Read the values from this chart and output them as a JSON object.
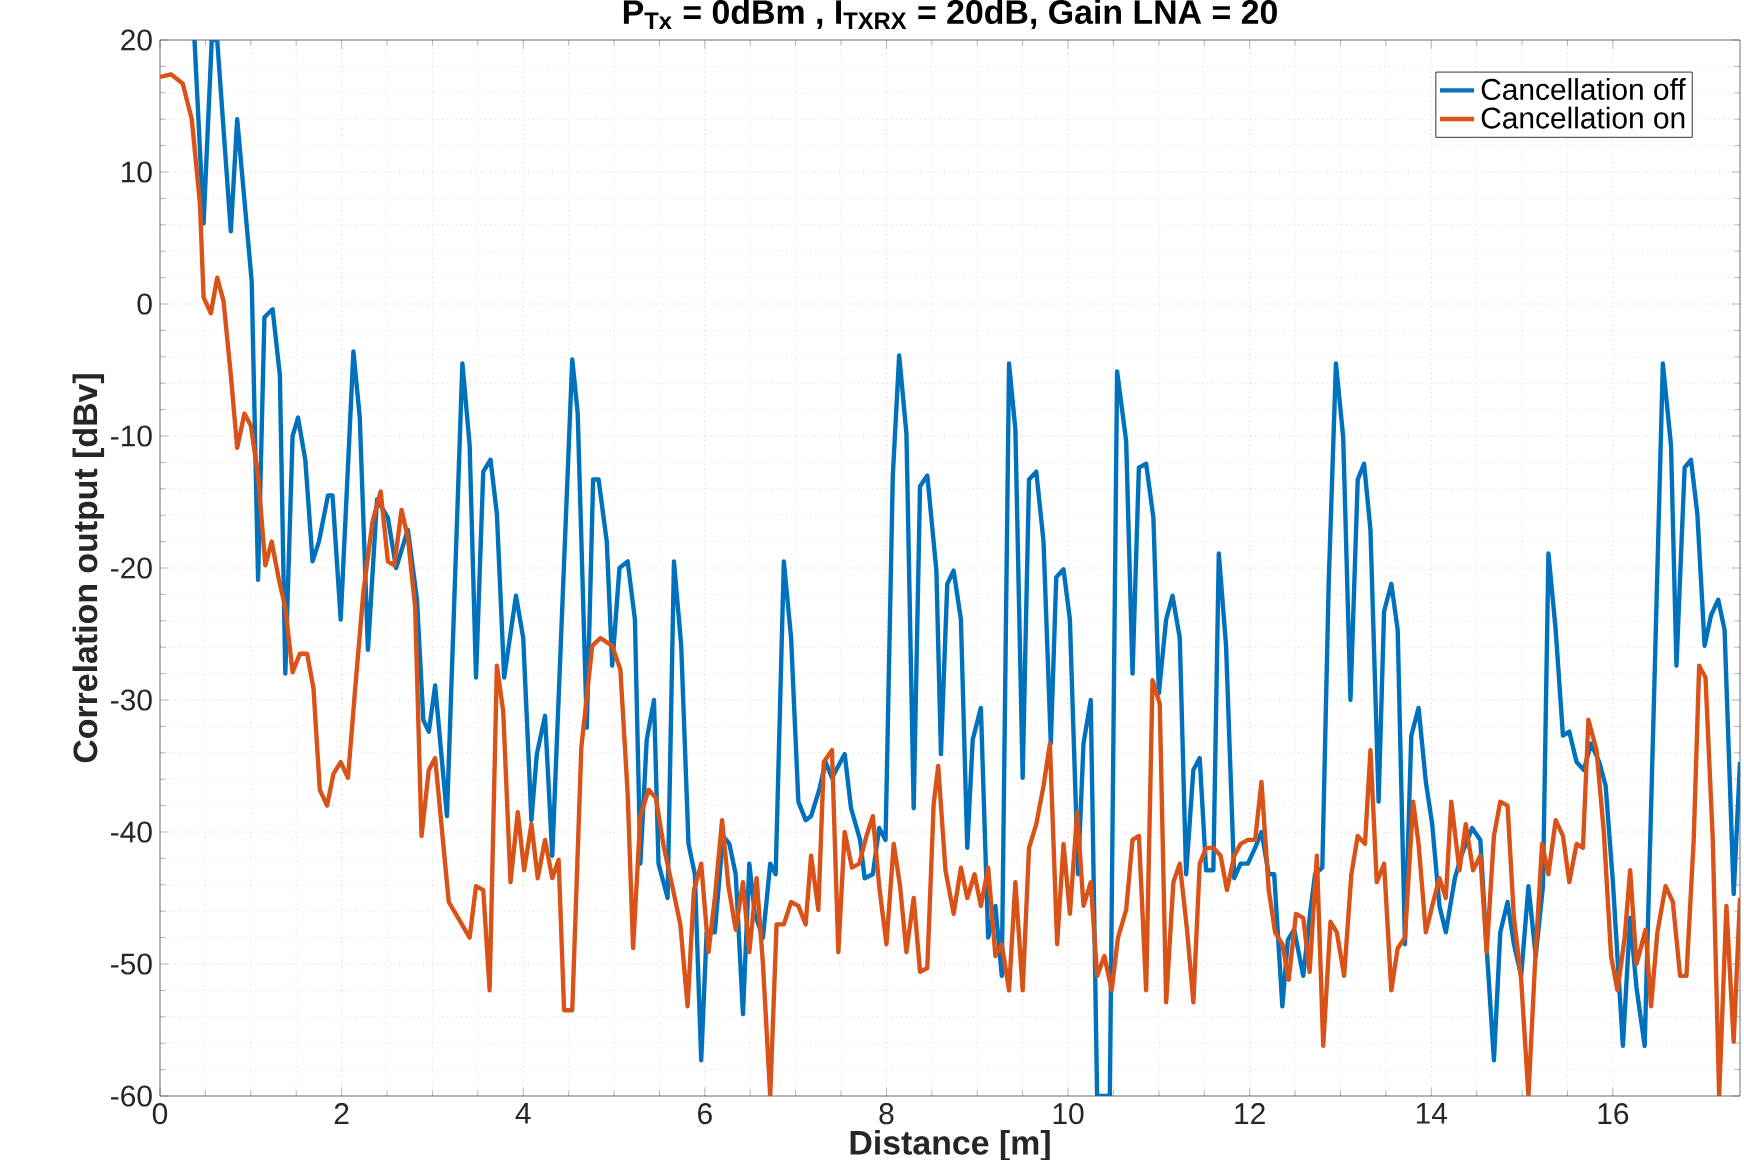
{
  "chart_data": {
    "type": "line",
    "title": "P$_{Tx}$ = 0dBm , I$_{TXRX}$ = 20dB, Gain LNA = 20",
    "xlabel": "Distance [m]",
    "ylabel": "Correlation output [dBv]",
    "xlim": [
      0,
      17.4
    ],
    "ylim": [
      -60,
      20
    ],
    "xticks": [
      0,
      2,
      4,
      6,
      8,
      10,
      12,
      14,
      16
    ],
    "yticks": [
      -60,
      -50,
      -40,
      -30,
      -20,
      -10,
      0,
      10,
      20
    ],
    "grid": true,
    "legend": "top right",
    "series": [
      {
        "name": "Cancellation off",
        "color": "#0072bd",
        "x": [
          0.38,
          0.48,
          0.57,
          0.63,
          0.78,
          0.85,
          1.01,
          1.08,
          1.15,
          1.24,
          1.32,
          1.38,
          1.46,
          1.52,
          1.6,
          1.68,
          1.75,
          1.85,
          1.9,
          1.99,
          2.13,
          2.2,
          2.29,
          2.39,
          2.51,
          2.6,
          2.73,
          2.83,
          2.9,
          2.96,
          3.03,
          3.16,
          3.33,
          3.41,
          3.48,
          3.56,
          3.64,
          3.71,
          3.79,
          3.92,
          4.0,
          4.09,
          4.15,
          4.24,
          4.32,
          4.54,
          4.6,
          4.7,
          4.77,
          4.83,
          4.92,
          4.98,
          5.06,
          5.15,
          5.23,
          5.29,
          5.36,
          5.44,
          5.49,
          5.59,
          5.66,
          5.74,
          5.82,
          5.89,
          5.96,
          6.02,
          6.11,
          6.2,
          6.27,
          6.34,
          6.42,
          6.49,
          6.55,
          6.64,
          6.72,
          6.78,
          6.87,
          6.95,
          7.03,
          7.11,
          7.17,
          7.26,
          7.33,
          7.4,
          7.54,
          7.61,
          7.71,
          7.76,
          7.85,
          7.92,
          7.99,
          8.07,
          8.14,
          8.22,
          8.3,
          8.37,
          8.45,
          8.55,
          8.6,
          8.67,
          8.74,
          8.82,
          8.89,
          8.95,
          9.04,
          9.12,
          9.2,
          9.27,
          9.35,
          9.42,
          9.5,
          9.57,
          9.65,
          9.73,
          9.81,
          9.87,
          9.95,
          10.02,
          10.11,
          10.17,
          10.25,
          10.32,
          10.46,
          10.54,
          10.64,
          10.71,
          10.78,
          10.86,
          10.94,
          11.0,
          11.08,
          11.15,
          11.23,
          11.3,
          11.38,
          11.45,
          11.52,
          11.6,
          11.66,
          11.74,
          11.83,
          11.9,
          11.98,
          12.06,
          12.13,
          12.21,
          12.27,
          12.36,
          12.42,
          12.49,
          12.59,
          12.67,
          12.72,
          12.8,
          12.87,
          12.95,
          13.03,
          13.11,
          13.19,
          13.26,
          13.33,
          13.42,
          13.48,
          13.56,
          13.63,
          13.71,
          13.78,
          13.86,
          13.94,
          14.01,
          14.09,
          14.16,
          14.26,
          14.33,
          14.45,
          14.54,
          14.61,
          14.69,
          14.76,
          14.84,
          14.91,
          14.99,
          15.07,
          15.15,
          15.23,
          15.29,
          15.37,
          15.45,
          15.52,
          15.6,
          15.68,
          15.76,
          15.85,
          15.92,
          16.0,
          16.11,
          16.19,
          16.26,
          16.35,
          16.45,
          16.55,
          16.64,
          16.7,
          16.79,
          16.86,
          16.93,
          17.01,
          17.08,
          17.16,
          17.23,
          17.33,
          17.4
        ],
        "values": [
          20,
          6.1,
          20,
          20,
          5.5,
          14,
          1.7,
          -20.9,
          -1,
          -0.4,
          -5.4,
          -28,
          -10,
          -8.6,
          -11.8,
          -19.5,
          -18,
          -14.5,
          -14.5,
          -23.9,
          -3.6,
          -8.6,
          -26.2,
          -14.8,
          -16.2,
          -20,
          -17.1,
          -22.4,
          -31.5,
          -32.4,
          -28.9,
          -38.8,
          -4.5,
          -10.7,
          -28.3,
          -12.7,
          -11.8,
          -15.9,
          -28.3,
          -22.1,
          -25.3,
          -39.1,
          -34.1,
          -31.2,
          -41.8,
          -4.2,
          -8.3,
          -32.1,
          -13.3,
          -13.3,
          -18,
          -27.4,
          -20,
          -19.5,
          -23.9,
          -42.4,
          -33,
          -30,
          -42.4,
          -45,
          -19.5,
          -25.9,
          -40.9,
          -43.2,
          -57.3,
          -47.6,
          -47.6,
          -40.3,
          -40.9,
          -43.2,
          -53.8,
          -42.4,
          -46.2,
          -48,
          -42.4,
          -43.2,
          -19.5,
          -25.3,
          -37.7,
          -39.1,
          -38.8,
          -36.8,
          -34.7,
          -35.9,
          -34.1,
          -38.2,
          -40.6,
          -43.5,
          -43.2,
          -39.7,
          -40.6,
          -13,
          -3.9,
          -9.8,
          -38.2,
          -13.8,
          -13,
          -20.2,
          -34.1,
          -21.2,
          -20.2,
          -23.9,
          -41.2,
          -33,
          -30.6,
          -48,
          -45.6,
          -50.9,
          -4.5,
          -9.5,
          -35.9,
          -13.3,
          -12.7,
          -18,
          -33.3,
          -20.7,
          -20.1,
          -23.9,
          -43.2,
          -33.3,
          -30,
          -60,
          -60,
          -5.1,
          -10.4,
          -28,
          -12.4,
          -12.1,
          -16.2,
          -29.5,
          -23.9,
          -22.1,
          -25.3,
          -43.2,
          -35.3,
          -34.4,
          -42.9,
          -42.9,
          -18.9,
          -25.9,
          -43.5,
          -42.4,
          -42.4,
          -41.2,
          -40,
          -43.2,
          -43.2,
          -53.2,
          -48.2,
          -47.4,
          -50.9,
          -45.9,
          -43.2,
          -42.7,
          -21.2,
          -4.5,
          -10.1,
          -30,
          -13.3,
          -12.1,
          -17.1,
          -37.7,
          -23.3,
          -21.2,
          -24.7,
          -48.5,
          -32.7,
          -30.6,
          -36.2,
          -39.4,
          -45.6,
          -47.6,
          -43.5,
          -41.8,
          -39.7,
          -40.6,
          -48.8,
          -57.3,
          -47.6,
          -45.3,
          -48.5,
          -50.9,
          -44.1,
          -49.4,
          -44.1,
          -18.9,
          -24.7,
          -32.7,
          -32.4,
          -34.7,
          -35.3,
          -33.3,
          -34.7,
          -36.5,
          -43.8,
          -56.2,
          -46.5,
          -51.8,
          -56.2,
          -30.6,
          -4.5,
          -10.7,
          -27.4,
          -12.4,
          -11.8,
          -15.9,
          -25.9,
          -23.6,
          -22.4,
          -24.7,
          -44.7,
          -34.7
        ]
      },
      {
        "name": "Cancellation on",
        "color": "#d95319",
        "x": [
          0,
          0.12,
          0.25,
          0.35,
          0.44,
          0.48,
          0.56,
          0.63,
          0.7,
          0.78,
          0.85,
          0.93,
          1.0,
          1.08,
          1.16,
          1.23,
          1.31,
          1.38,
          1.46,
          1.54,
          1.62,
          1.69,
          1.76,
          1.84,
          1.91,
          1.99,
          2.07,
          2.15,
          2.24,
          2.34,
          2.43,
          2.51,
          2.58,
          2.66,
          2.73,
          2.81,
          2.88,
          2.96,
          3.03,
          3.18,
          3.41,
          3.48,
          3.56,
          3.63,
          3.71,
          3.78,
          3.86,
          3.94,
          4.01,
          4.09,
          4.16,
          4.24,
          4.32,
          4.39,
          4.45,
          4.54,
          4.64,
          4.76,
          4.85,
          4.98,
          5.07,
          5.15,
          5.21,
          5.29,
          5.38,
          5.46,
          5.55,
          5.66,
          5.73,
          5.81,
          5.88,
          5.96,
          6.04,
          6.11,
          6.19,
          6.26,
          6.34,
          6.42,
          6.49,
          6.57,
          6.64,
          6.72,
          6.79,
          6.87,
          6.95,
          7.03,
          7.11,
          7.17,
          7.25,
          7.31,
          7.4,
          7.47,
          7.54,
          7.62,
          7.7,
          7.78,
          7.85,
          7.92,
          8.0,
          8.08,
          8.15,
          8.22,
          8.3,
          8.37,
          8.45,
          8.52,
          8.57,
          8.65,
          8.74,
          8.82,
          8.89,
          8.97,
          9.04,
          9.12,
          9.2,
          9.27,
          9.35,
          9.42,
          9.5,
          9.57,
          9.65,
          9.73,
          9.8,
          9.88,
          9.95,
          10.02,
          10.1,
          10.17,
          10.25,
          10.32,
          10.4,
          10.48,
          10.55,
          10.64,
          10.71,
          10.78,
          10.86,
          10.93,
          11.01,
          11.08,
          11.16,
          11.23,
          11.31,
          11.38,
          11.45,
          11.52,
          11.6,
          11.68,
          11.75,
          11.83,
          11.9,
          11.98,
          12.06,
          12.13,
          12.21,
          12.28,
          12.36,
          12.43,
          12.51,
          12.59,
          12.66,
          12.74,
          12.81,
          12.89,
          12.96,
          13.04,
          13.12,
          13.19,
          13.27,
          13.33,
          13.4,
          13.48,
          13.56,
          13.63,
          13.71,
          13.8,
          13.86,
          13.94,
          14.01,
          14.09,
          14.16,
          14.22,
          14.31,
          14.38,
          14.46,
          14.54,
          14.61,
          14.69,
          14.76,
          14.84,
          14.91,
          14.99,
          15.07,
          15.14,
          15.22,
          15.29,
          15.37,
          15.45,
          15.52,
          15.6,
          15.67,
          15.73,
          15.82,
          15.9,
          15.98,
          16.05,
          16.13,
          16.19,
          16.26,
          16.36,
          16.42,
          16.49,
          16.58,
          16.66,
          16.74,
          16.81,
          16.89,
          16.95,
          17.02,
          17.1,
          17.17,
          17.25,
          17.33,
          17.4
        ],
        "values": [
          17.2,
          17.4,
          16.7,
          14,
          7.6,
          0.5,
          -0.7,
          2,
          0.2,
          -5.4,
          -10.9,
          -8.3,
          -9.2,
          -13,
          -19.8,
          -18,
          -20.9,
          -23,
          -27.9,
          -26.5,
          -26.5,
          -29.1,
          -36.8,
          -38,
          -35.6,
          -34.7,
          -35.9,
          -29.1,
          -21.8,
          -16.5,
          -14.2,
          -19.5,
          -19.8,
          -15.6,
          -17.7,
          -23,
          -40.3,
          -35.3,
          -34.4,
          -45.3,
          -48,
          -44.1,
          -44.4,
          -52,
          -27.4,
          -30.9,
          -43.8,
          -38.5,
          -42.9,
          -39.4,
          -43.5,
          -40.6,
          -43.5,
          -42.1,
          -53.5,
          -53.5,
          -33.6,
          -25.9,
          -25.3,
          -25.9,
          -27.7,
          -37.1,
          -48.8,
          -38.8,
          -36.8,
          -37.4,
          -41.2,
          -44.7,
          -47,
          -53.2,
          -44.4,
          -42.4,
          -49.1,
          -45,
          -39.1,
          -44.1,
          -47.4,
          -43.8,
          -49.1,
          -43.5,
          -50,
          -60,
          -47,
          -47,
          -45.3,
          -45.6,
          -47,
          -41.8,
          -45.9,
          -34.7,
          -33.8,
          -49.1,
          -40,
          -42.7,
          -42.4,
          -40.3,
          -38.8,
          -44.1,
          -48.5,
          -40.9,
          -44.1,
          -49.1,
          -45,
          -50.6,
          -50.3,
          -37.9,
          -35,
          -42.9,
          -46.2,
          -42.7,
          -45,
          -43.2,
          -45.6,
          -42.7,
          -49.4,
          -48.5,
          -52,
          -43.8,
          -52,
          -41.2,
          -39.4,
          -36.5,
          -33.3,
          -48.5,
          -40.9,
          -46.2,
          -38.5,
          -45.6,
          -43.8,
          -50.9,
          -49.4,
          -52,
          -48,
          -45.9,
          -40.6,
          -40.3,
          -52,
          -28.5,
          -30.3,
          -52.9,
          -43.8,
          -42.4,
          -47.4,
          -52.9,
          -42.4,
          -41.2,
          -41.2,
          -41.8,
          -44.4,
          -41.8,
          -40.9,
          -40.6,
          -40.6,
          -36.2,
          -44.4,
          -47.6,
          -48.5,
          -51.2,
          -46.2,
          -46.5,
          -50.6,
          -41.8,
          -56.2,
          -46.8,
          -47.6,
          -50.9,
          -43.2,
          -40.3,
          -40.9,
          -33.8,
          -43.8,
          -42.4,
          -52,
          -48.8,
          -48,
          -37.7,
          -40.9,
          -47.6,
          -45.6,
          -43.5,
          -45,
          -37.7,
          -42.9,
          -39.4,
          -42.9,
          -41.8,
          -49.1,
          -40.3,
          -37.7,
          -38,
          -46.5,
          -51.2,
          -60,
          -50.3,
          -40.9,
          -43.2,
          -39.1,
          -40.3,
          -43.8,
          -40.9,
          -41.2,
          -31.5,
          -33.8,
          -40,
          -49.4,
          -52,
          -48,
          -42.9,
          -50,
          -47.4,
          -53.2,
          -47.6,
          -44.1,
          -45.3,
          -50.9,
          -50.9,
          -40.6,
          -27.4,
          -28.3,
          -40.6,
          -60,
          -45.6,
          -55.9,
          -45
        ]
      }
    ]
  }
}
